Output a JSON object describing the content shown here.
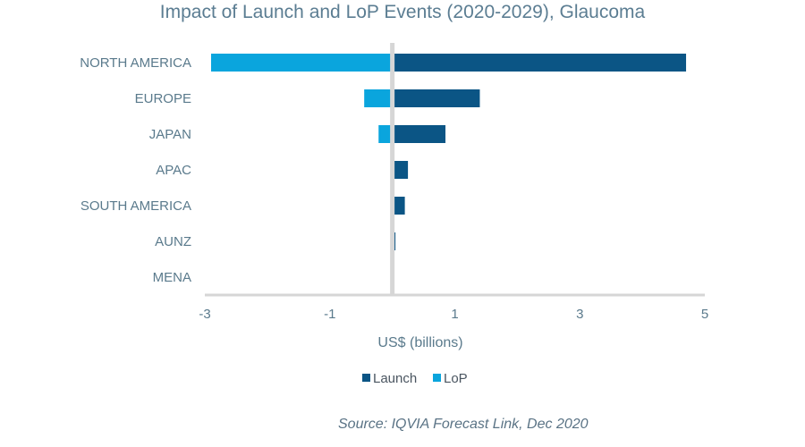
{
  "chart_data": {
    "type": "bar",
    "orientation": "horizontal",
    "stacked": true,
    "title": "Impact of Launch and LoP Events (2020-2029), Glaucoma",
    "xlabel": "US$ (billions)",
    "ylabel": "",
    "categories": [
      "NORTH AMERICA",
      "EUROPE",
      "JAPAN",
      "APAC",
      "SOUTH AMERICA",
      "AUNZ",
      "MENA"
    ],
    "series": [
      {
        "name": "Launch",
        "color": "#0b5585",
        "values": [
          4.7,
          1.4,
          0.85,
          0.25,
          0.2,
          0.05,
          0.02
        ]
      },
      {
        "name": "LoP",
        "color": "#0aa5dd",
        "values": [
          -2.9,
          -0.45,
          -0.22,
          0,
          0,
          0,
          0
        ]
      }
    ],
    "xlim": [
      -3,
      5
    ],
    "xticks": [
      -3,
      -1,
      1,
      3,
      5
    ],
    "xtick_labels": [
      "-3",
      "-1",
      "1",
      "3",
      "5"
    ],
    "legend_position": "bottom",
    "grid": false,
    "source": "Source: IQVIA Forecast Link, Dec 2020"
  }
}
